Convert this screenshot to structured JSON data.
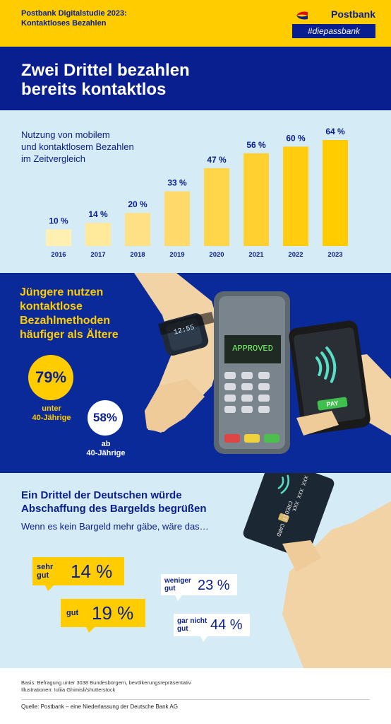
{
  "header": {
    "study_line1": "Postbank Digitalstudie 2023:",
    "study_line2": "Kontaktloses Bezahlen",
    "brand": "Postbank",
    "tagline": "#diepassbank"
  },
  "title": {
    "line1": "Zwei Drittel bezahlen",
    "line2": "bereits kontaktlos"
  },
  "chart_section": {
    "title_line1": "Nutzung von mobilem",
    "title_line2": "und kontaktlosem Bezahlen",
    "title_line3": "im Zeitvergleich"
  },
  "chart_data": {
    "type": "bar",
    "categories": [
      "2016",
      "2017",
      "2018",
      "2019",
      "2020",
      "2021",
      "2022",
      "2023"
    ],
    "values": [
      10,
      14,
      20,
      33,
      47,
      56,
      60,
      64
    ],
    "value_labels": [
      "10 %",
      "14 %",
      "20 %",
      "33 %",
      "47 %",
      "56 %",
      "60 %",
      "64 %"
    ],
    "colors": [
      "#FFEFB0",
      "#FFE99A",
      "#FFE185",
      "#FFDA6A",
      "#FFD54A",
      "#FFD030",
      "#FFCC10",
      "#FFCC00"
    ],
    "ylim": [
      0,
      64
    ],
    "grid": false
  },
  "age_section": {
    "title_line1": "Jüngere nutzen",
    "title_line2": "kontaktlose",
    "title_line3": "Bezahlmethoden",
    "title_line4": "häufiger als Ältere",
    "young_value": "79%",
    "young_label_line1": "unter",
    "young_label_line2": "40-Jährige",
    "old_value": "58%",
    "old_label_line1": "ab",
    "old_label_line2": "40-Jährige",
    "terminal_text": "APPROVED",
    "phone_button": "PAY",
    "watch_time": "12:55",
    "card_text": "CREDIT CARD",
    "card_number": "XXX XXX XXX"
  },
  "opinion_section": {
    "title_line1": "Ein Drittel der Deutschen würde",
    "title_line2": "Abschaffung des Bargelds begrüßen",
    "subtitle": "Wenn es kein Bargeld mehr gäbe, wäre das…",
    "items": [
      {
        "label_line1": "sehr",
        "label_line2": "gut",
        "value": "14 %"
      },
      {
        "label_line1": "gut",
        "label_line2": "",
        "value": "19 %"
      },
      {
        "label_line1": "weniger",
        "label_line2": "gut",
        "value": "23 %"
      },
      {
        "label_line1": "gar nicht",
        "label_line2": "gut",
        "value": "44 %"
      }
    ]
  },
  "footer": {
    "basis": "Basis: Befragung unter 3038 Bundesbürgern, bevölkerungsrepräsentativ",
    "illustrations": "Illustrationen: Iuliia Ghimisli/shutterstock",
    "source": "Quelle: Postbank – eine Niederlassung der Deutsche Bank AG"
  },
  "colors": {
    "navy": "#0A1F8F",
    "yellow": "#FFCC00",
    "light_blue": "#D5EBF5",
    "skin": "#F2D3A6"
  }
}
